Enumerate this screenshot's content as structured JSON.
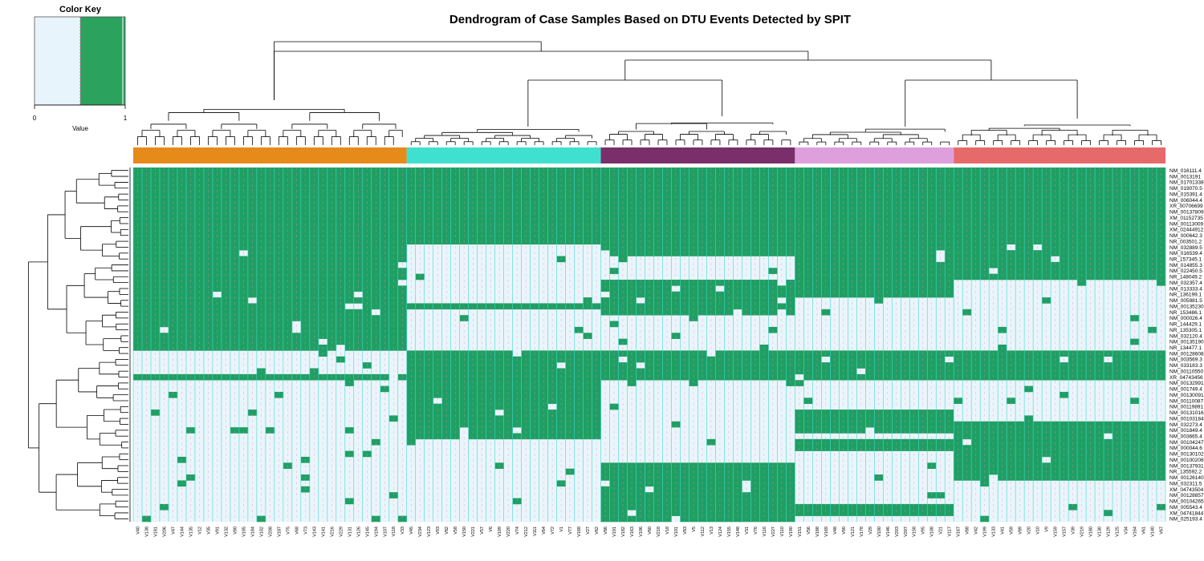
{
  "chart_data": {
    "type": "heatmap",
    "title": "Dendrogram of Case Samples Based on DTU Events Detected by SPIT",
    "color_key": {
      "title": "Color Key",
      "xlabel": "Value",
      "ticks": [
        "0",
        "1"
      ],
      "low_color": "#e8f4fb",
      "high_color": "#2ca25f",
      "line_color": "#e7569a"
    },
    "colors": {
      "cell_on": "#1f9f63",
      "cell_off": "#eaf5fb",
      "grid": "#3fd9cf",
      "marker": "#ff7eb6"
    },
    "clusters": [
      {
        "color": "#e68a1a",
        "size": 31
      },
      {
        "color": "#40e0d0",
        "size": 22
      },
      {
        "color": "#7a2e6a",
        "size": 22
      },
      {
        "color": "#dda0dd",
        "size": 18
      },
      {
        "color": "#e66a6a",
        "size": 24
      }
    ],
    "columns": [
      "V40",
      "V138",
      "V181",
      "V206",
      "V47",
      "V144",
      "V135",
      "V12",
      "V35",
      "V91",
      "V132",
      "V80",
      "V185",
      "V184",
      "V102",
      "V208",
      "V187",
      "V75",
      "V68",
      "V73",
      "V143",
      "V141",
      "V216",
      "V229",
      "V131",
      "V126",
      "V145",
      "V194",
      "V107",
      "V118",
      "V33",
      "V45",
      "V234",
      "V123",
      "V93",
      "V82",
      "V58",
      "V150",
      "V221",
      "V57",
      "V6",
      "V109",
      "V220",
      "V74",
      "V212",
      "V111",
      "V64",
      "V72",
      "V1",
      "V77",
      "V168",
      "V27",
      "V62",
      "V86",
      "V191",
      "V182",
      "V163",
      "V106",
      "V60",
      "V218",
      "V18",
      "V101",
      "V83",
      "V5",
      "V112",
      "V13",
      "V124",
      "V155",
      "V148",
      "V31",
      "V76",
      "V116",
      "V227",
      "V110",
      "V190",
      "V151",
      "V56",
      "V188",
      "V169",
      "V48",
      "V90",
      "V121",
      "V178",
      "V29",
      "V100",
      "V146",
      "V203",
      "V207",
      "V158",
      "V95",
      "V108",
      "V21",
      "V117",
      "V167",
      "V88",
      "V42",
      "V199",
      "V133",
      "V41",
      "V59",
      "V89",
      "V20",
      "V10",
      "V9",
      "V159",
      "V157",
      "V39",
      "V219",
      "V180",
      "V130",
      "V129",
      "V125",
      "V34",
      "V164",
      "V61",
      "V140",
      "V67"
    ],
    "rows": [
      "NM_016111.4",
      "NM_0013191",
      "NM_01701338",
      "NM_019070.5",
      "NM_015391.4",
      "NM_006044.4",
      "XR_00706699",
      "NM_00137809",
      "XM_01152735",
      "NM_00113009",
      "XM_02444912",
      "NM_000642.3",
      "NR_003501.2",
      "NM_032889.5",
      "NM_016539.4",
      "NR_157345.1",
      "NM_014855.3",
      "NM_022450.5",
      "NR_148049.2",
      "NM_032357.4",
      "NM_013333.4",
      "NR_136199.1",
      "NM_005981.5",
      "NM_00135230",
      "NR_153486.1",
      "NM_000026.4",
      "NR_144429.1",
      "NR_135305.1",
      "NM_032120.4",
      "NM_00135190",
      "NR_134477.1",
      "NM_00128608",
      "NM_003569.3",
      "NM_033183.3",
      "NM_00110550",
      "XR_04743456",
      "NM_00132991",
      "NM_001749.4",
      "NM_00130091",
      "NM_00110087",
      "NM_00119891",
      "NM_00131016",
      "NM_00103184",
      "NM_032273.4",
      "NM_001849.4",
      "NM_003665.4",
      "NM_00104247",
      "NM_000044.6",
      "NM_00130102",
      "NM_00100208",
      "NM_00137931",
      "NR_135592.2",
      "NM_00126140",
      "NM_032311.5",
      "XM_04743504",
      "NM_00128857",
      "NM_00104265",
      "NM_005543.4",
      "XM_04741844",
      "NM_025193.4"
    ],
    "profile_pattern": [
      [
        1,
        1,
        1,
        1,
        1
      ],
      [
        1,
        1,
        1,
        1,
        1
      ],
      [
        1,
        1,
        1,
        1,
        1
      ],
      [
        1,
        1,
        1,
        1,
        1
      ],
      [
        1,
        1,
        1,
        1,
        1
      ],
      [
        1,
        1,
        1,
        1,
        1
      ],
      [
        1,
        1,
        1,
        1,
        1
      ],
      [
        1,
        1,
        1,
        1,
        1
      ],
      [
        1,
        1,
        1,
        1,
        1
      ],
      [
        1,
        1,
        1,
        1,
        1
      ],
      [
        1,
        1,
        1,
        1,
        1
      ],
      [
        1,
        1,
        1,
        1,
        1
      ],
      [
        1,
        1,
        1,
        1,
        1
      ],
      [
        1,
        0,
        1,
        1,
        1
      ],
      [
        1,
        0,
        1,
        1,
        1
      ],
      [
        1,
        0,
        0,
        1,
        1
      ],
      [
        1,
        0,
        0,
        1,
        1
      ],
      [
        1,
        0,
        0,
        1,
        1
      ],
      [
        1,
        0,
        0,
        1,
        1
      ],
      [
        1,
        0,
        1,
        1,
        0
      ],
      [
        1,
        0,
        1,
        1,
        0
      ],
      [
        1,
        0,
        1,
        1,
        0
      ],
      [
        1,
        0,
        1,
        0,
        0
      ],
      [
        1,
        1,
        1,
        0,
        0
      ],
      [
        1,
        0,
        1,
        0,
        0
      ],
      [
        1,
        0,
        0,
        0,
        0
      ],
      [
        1,
        0,
        0,
        0,
        0
      ],
      [
        1,
        0,
        0,
        0,
        0
      ],
      [
        1,
        0,
        0,
        0,
        0
      ],
      [
        1,
        0,
        0,
        0,
        0
      ],
      [
        1,
        0,
        0,
        0,
        0
      ],
      [
        0,
        1,
        1,
        1,
        1
      ],
      [
        0,
        1,
        1,
        1,
        1
      ],
      [
        0,
        1,
        1,
        1,
        1
      ],
      [
        0,
        1,
        1,
        1,
        1
      ],
      [
        1,
        1,
        1,
        1,
        1
      ],
      [
        0,
        1,
        0,
        0,
        0
      ],
      [
        0,
        1,
        0,
        0,
        0
      ],
      [
        0,
        1,
        0,
        0,
        0
      ],
      [
        0,
        1,
        0,
        0,
        0
      ],
      [
        0,
        1,
        0,
        0,
        0
      ],
      [
        0,
        1,
        0,
        1,
        0
      ],
      [
        0,
        1,
        0,
        1,
        0
      ],
      [
        0,
        1,
        0,
        1,
        1
      ],
      [
        0,
        1,
        0,
        1,
        1
      ],
      [
        0,
        1,
        0,
        0,
        1
      ],
      [
        0,
        0,
        0,
        1,
        1
      ],
      [
        0,
        0,
        0,
        1,
        1
      ],
      [
        0,
        0,
        0,
        0,
        1
      ],
      [
        0,
        0,
        0,
        0,
        1
      ],
      [
        0,
        0,
        1,
        0,
        1
      ],
      [
        0,
        0,
        1,
        0,
        1
      ],
      [
        0,
        0,
        1,
        0,
        1
      ],
      [
        0,
        0,
        1,
        0,
        0
      ],
      [
        0,
        0,
        1,
        0,
        0
      ],
      [
        0,
        0,
        1,
        0,
        0
      ],
      [
        0,
        0,
        1,
        0,
        0
      ],
      [
        0,
        0,
        1,
        1,
        0
      ],
      [
        0,
        0,
        1,
        1,
        0
      ],
      [
        0,
        0,
        1,
        0,
        0
      ]
    ]
  }
}
